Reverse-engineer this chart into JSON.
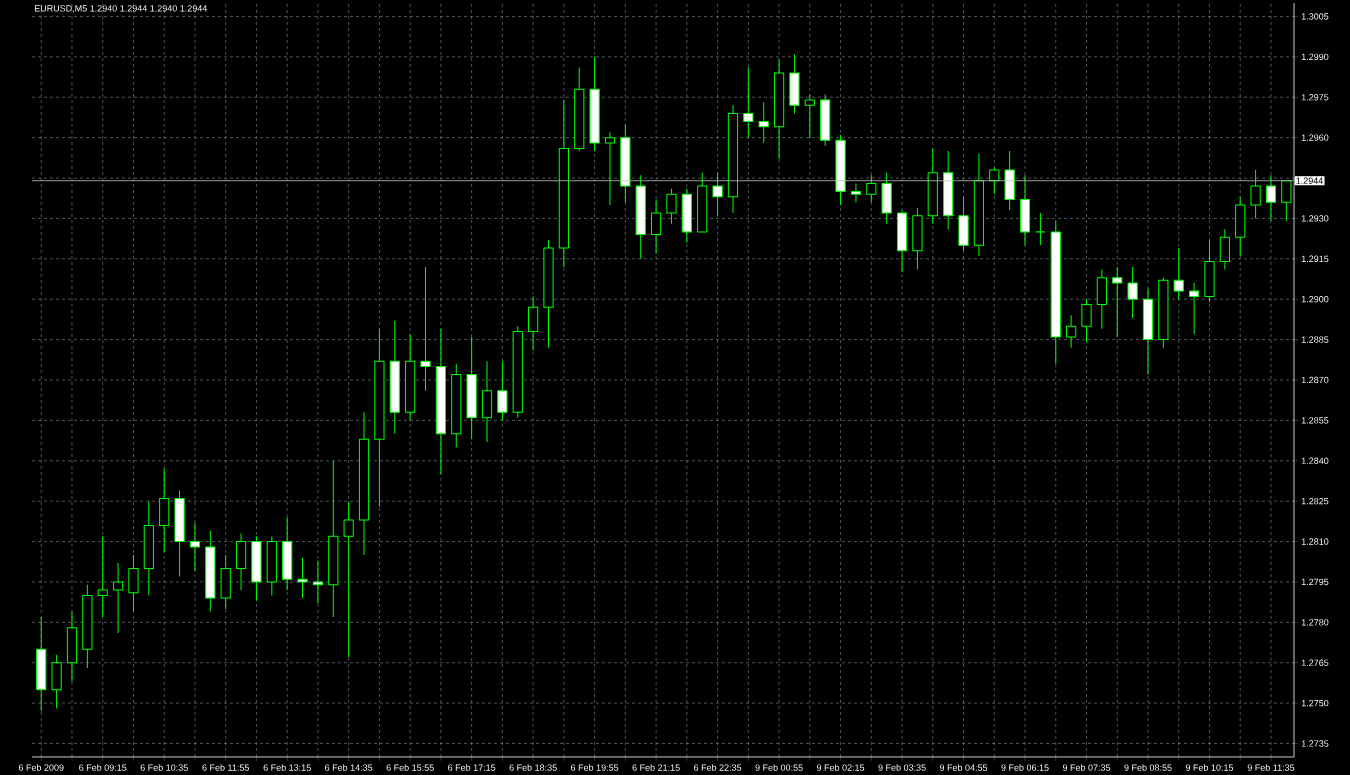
{
  "chart_data": {
    "type": "candlestick",
    "title": "EURUSD,M5  1.2940 1.2944 1.2940 1.2944",
    "color": "#00ff00",
    "categories": [
      "6 Feb 2009",
      null,
      null,
      null,
      "6 Feb 09:15",
      null,
      null,
      null,
      "6 Feb 10:35",
      null,
      null,
      null,
      "6 Feb 11:55",
      null,
      null,
      null,
      "6 Feb 13:15",
      null,
      null,
      null,
      "6 Feb 14:35",
      null,
      null,
      null,
      "6 Feb 15:55",
      null,
      null,
      null,
      "6 Feb 17:15",
      null,
      null,
      null,
      "6 Feb 18:35",
      null,
      null,
      null,
      "6 Feb 19:55",
      null,
      null,
      null,
      "6 Feb 21:15",
      null,
      null,
      null,
      "6 Feb 22:35",
      null,
      null,
      null,
      "9 Feb 00:55",
      null,
      null,
      null,
      "9 Feb 02:15",
      null,
      null,
      null,
      "9 Feb 03:35",
      null,
      null,
      null,
      "9 Feb 04:55",
      null,
      null,
      null,
      "9 Feb 06:15",
      null,
      null,
      null,
      "9 Feb 07:35",
      null,
      null,
      null,
      "9 Feb 08:55",
      null,
      null,
      null,
      "9 Feb 10:15",
      null,
      null,
      null,
      "9 Feb 11:35",
      null
    ],
    "ohlc": [
      [
        1.277,
        1.2782,
        1.2747,
        1.2755
      ],
      [
        1.2755,
        1.2768,
        1.2748,
        1.2765
      ],
      [
        1.2765,
        1.2784,
        1.2758,
        1.2778
      ],
      [
        1.277,
        1.2794,
        1.2763,
        1.279
      ],
      [
        1.279,
        1.2812,
        1.2782,
        1.2792
      ],
      [
        1.2792,
        1.2802,
        1.2776,
        1.2795
      ],
      [
        1.2791,
        1.2805,
        1.2784,
        1.28
      ],
      [
        1.28,
        1.2825,
        1.279,
        1.2816
      ],
      [
        1.2816,
        1.2837,
        1.2806,
        1.2826
      ],
      [
        1.2826,
        1.2829,
        1.2797,
        1.281
      ],
      [
        1.281,
        1.2817,
        1.2799,
        1.2808
      ],
      [
        1.2808,
        1.2814,
        1.2784,
        1.2789
      ],
      [
        1.2789,
        1.2805,
        1.2785,
        1.28
      ],
      [
        1.28,
        1.2813,
        1.2792,
        1.281
      ],
      [
        1.281,
        1.2812,
        1.2788,
        1.2795
      ],
      [
        1.2795,
        1.2812,
        1.279,
        1.281
      ],
      [
        1.281,
        1.2819,
        1.2792,
        1.2796
      ],
      [
        1.2796,
        1.2804,
        1.2789,
        1.2795
      ],
      [
        1.2795,
        1.2803,
        1.2787,
        1.2794
      ],
      [
        1.2794,
        1.284,
        1.2782,
        1.2812
      ],
      [
        1.2812,
        1.2825,
        1.2767,
        1.2818
      ],
      [
        1.2818,
        1.2858,
        1.2805,
        1.2848
      ],
      [
        1.2848,
        1.2889,
        1.2823,
        1.2877
      ],
      [
        1.2877,
        1.2892,
        1.285,
        1.2858
      ],
      [
        1.2858,
        1.2887,
        1.2855,
        1.2877
      ],
      [
        1.2877,
        1.2912,
        1.2866,
        1.2875
      ],
      [
        1.2875,
        1.2889,
        1.2835,
        1.285
      ],
      [
        1.285,
        1.2876,
        1.2845,
        1.2872
      ],
      [
        1.2872,
        1.2886,
        1.2848,
        1.2856
      ],
      [
        1.2856,
        1.2877,
        1.2847,
        1.2866
      ],
      [
        1.2866,
        1.2877,
        1.2855,
        1.2858
      ],
      [
        1.2858,
        1.289,
        1.2856,
        1.2888
      ],
      [
        1.2888,
        1.2901,
        1.2881,
        1.2897
      ],
      [
        1.2897,
        1.2922,
        1.2882,
        1.2919
      ],
      [
        1.2919,
        1.2974,
        1.2912,
        1.2956
      ],
      [
        1.2956,
        1.2986,
        1.2955,
        1.2978
      ],
      [
        1.2978,
        1.299,
        1.2955,
        1.2958
      ],
      [
        1.2958,
        1.2962,
        1.2935,
        1.296
      ],
      [
        1.296,
        1.2965,
        1.2936,
        1.2942
      ],
      [
        1.2942,
        1.2946,
        1.2915,
        1.2924
      ],
      [
        1.2924,
        1.2937,
        1.2917,
        1.2932
      ],
      [
        1.2932,
        1.2941,
        1.2928,
        1.2939
      ],
      [
        1.2939,
        1.2941,
        1.2921,
        1.2925
      ],
      [
        1.2925,
        1.2947,
        1.2925,
        1.2942
      ],
      [
        1.2942,
        1.2947,
        1.2931,
        1.2938
      ],
      [
        1.2938,
        1.2972,
        1.2932,
        1.2969
      ],
      [
        1.2969,
        1.2986,
        1.296,
        1.2966
      ],
      [
        1.2966,
        1.2973,
        1.2958,
        1.2964
      ],
      [
        1.2964,
        1.2989,
        1.2952,
        1.2984
      ],
      [
        1.2984,
        1.2991,
        1.2969,
        1.2972
      ],
      [
        1.2972,
        1.2976,
        1.296,
        1.2974
      ],
      [
        1.2974,
        1.2976,
        1.2957,
        1.2959
      ],
      [
        1.2959,
        1.2961,
        1.2935,
        1.294
      ],
      [
        1.294,
        1.2943,
        1.2936,
        1.2939
      ],
      [
        1.2939,
        1.2946,
        1.2936,
        1.2943
      ],
      [
        1.2943,
        1.2947,
        1.2928,
        1.2932
      ],
      [
        1.2932,
        1.2933,
        1.291,
        1.2918
      ],
      [
        1.2918,
        1.2934,
        1.2911,
        1.2931
      ],
      [
        1.2931,
        1.2956,
        1.2928,
        1.2947
      ],
      [
        1.2947,
        1.2955,
        1.2926,
        1.2931
      ],
      [
        1.2931,
        1.2938,
        1.2918,
        1.292
      ],
      [
        1.292,
        1.2954,
        1.2916,
        1.2944
      ],
      [
        1.2944,
        1.2949,
        1.2939,
        1.2948
      ],
      [
        1.2948,
        1.2955,
        1.2933,
        1.2937
      ],
      [
        1.2937,
        1.2946,
        1.292,
        1.2925
      ],
      [
        1.2925,
        1.2932,
        1.292,
        1.2925
      ],
      [
        1.2925,
        1.2929,
        1.2876,
        1.2886
      ],
      [
        1.2886,
        1.2894,
        1.2882,
        1.289
      ],
      [
        1.289,
        1.29,
        1.2884,
        1.2898
      ],
      [
        1.2898,
        1.2911,
        1.2889,
        1.2908
      ],
      [
        1.2908,
        1.2912,
        1.2886,
        1.2906
      ],
      [
        1.2906,
        1.2912,
        1.2893,
        1.29
      ],
      [
        1.29,
        1.2904,
        1.2872,
        1.2885
      ],
      [
        1.2885,
        1.2908,
        1.2882,
        1.2907
      ],
      [
        1.2907,
        1.2919,
        1.29,
        1.2903
      ],
      [
        1.2903,
        1.2906,
        1.2887,
        1.2901
      ],
      [
        1.2901,
        1.2922,
        1.2899,
        1.2914
      ],
      [
        1.2914,
        1.2926,
        1.2911,
        1.2923
      ],
      [
        1.2923,
        1.2938,
        1.2916,
        1.2935
      ],
      [
        1.2935,
        1.2948,
        1.293,
        1.2942
      ],
      [
        1.2942,
        1.2946,
        1.2929,
        1.2936
      ],
      [
        1.2936,
        1.2944,
        1.2929,
        1.2944
      ]
    ],
    "ylim": [
      1.273,
      1.301
    ],
    "yticks": [
      {
        "value": 1.2735,
        "label": "1.2735"
      },
      {
        "value": 1.275,
        "label": "1.2750"
      },
      {
        "value": 1.2765,
        "label": "1.2765"
      },
      {
        "value": 1.278,
        "label": "1.2780"
      },
      {
        "value": 1.2795,
        "label": "1.2795"
      },
      {
        "value": 1.281,
        "label": "1.2810"
      },
      {
        "value": 1.2825,
        "label": "1.2825"
      },
      {
        "value": 1.284,
        "label": "1.2840"
      },
      {
        "value": 1.2855,
        "label": "1.2855"
      },
      {
        "value": 1.287,
        "label": "1.2870"
      },
      {
        "value": 1.2885,
        "label": "1.2885"
      },
      {
        "value": 1.29,
        "label": "1.2900"
      },
      {
        "value": 1.2915,
        "label": "1.2915"
      },
      {
        "value": 1.293,
        "label": "1.2930"
      },
      {
        "value": 1.2945,
        "label": null
      },
      {
        "value": 1.296,
        "label": "1.2960"
      },
      {
        "value": 1.2975,
        "label": "1.2975"
      },
      {
        "value": 1.299,
        "label": "1.2990"
      },
      {
        "value": 1.3005,
        "label": "1.3005"
      }
    ],
    "grid": true,
    "ref_lines": [
      {
        "axis": "y",
        "value": 1.2944,
        "label": "1.2944",
        "color": "#c0c0c0"
      }
    ]
  }
}
